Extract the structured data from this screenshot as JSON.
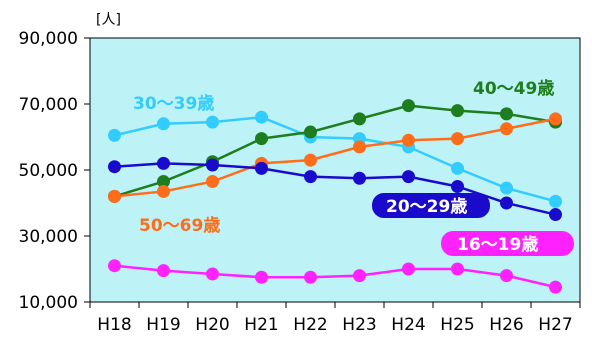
{
  "chart_data": {
    "type": "line",
    "categories": [
      "H18",
      "H19",
      "H20",
      "H21",
      "H22",
      "H23",
      "H24",
      "H25",
      "H26",
      "H27"
    ],
    "y_unit": "[人]",
    "ylim": [
      10000,
      90000
    ],
    "yticks": [
      10000,
      30000,
      50000,
      70000,
      90000
    ],
    "ytick_labels": [
      "10,000",
      "30,000",
      "50,000",
      "70,000",
      "90,000"
    ],
    "grid": false,
    "series": [
      {
        "name": "30〜39歳",
        "color": "#33ccff",
        "values": [
          60500,
          64000,
          64500,
          66000,
          60000,
          59500,
          57000,
          50500,
          44500,
          40500
        ]
      },
      {
        "name": "40〜49歳",
        "color": "#1e7d1e",
        "values": [
          42000,
          46500,
          52500,
          59500,
          61500,
          65500,
          69500,
          68000,
          67000,
          64500
        ]
      },
      {
        "name": "50〜69歳",
        "color": "#ff6d1a",
        "values": [
          42000,
          43500,
          46500,
          52000,
          53000,
          57000,
          59000,
          59500,
          62500,
          65500
        ]
      },
      {
        "name": "20〜29歳",
        "color": "#1a0acc",
        "values": [
          51000,
          52000,
          51500,
          50500,
          48000,
          47500,
          48000,
          45000,
          40000,
          36500
        ]
      },
      {
        "name": "16〜19歳",
        "color": "#ff22ff",
        "values": [
          21000,
          19500,
          18500,
          17500,
          17500,
          18000,
          20000,
          20000,
          18000,
          14500
        ]
      }
    ]
  }
}
